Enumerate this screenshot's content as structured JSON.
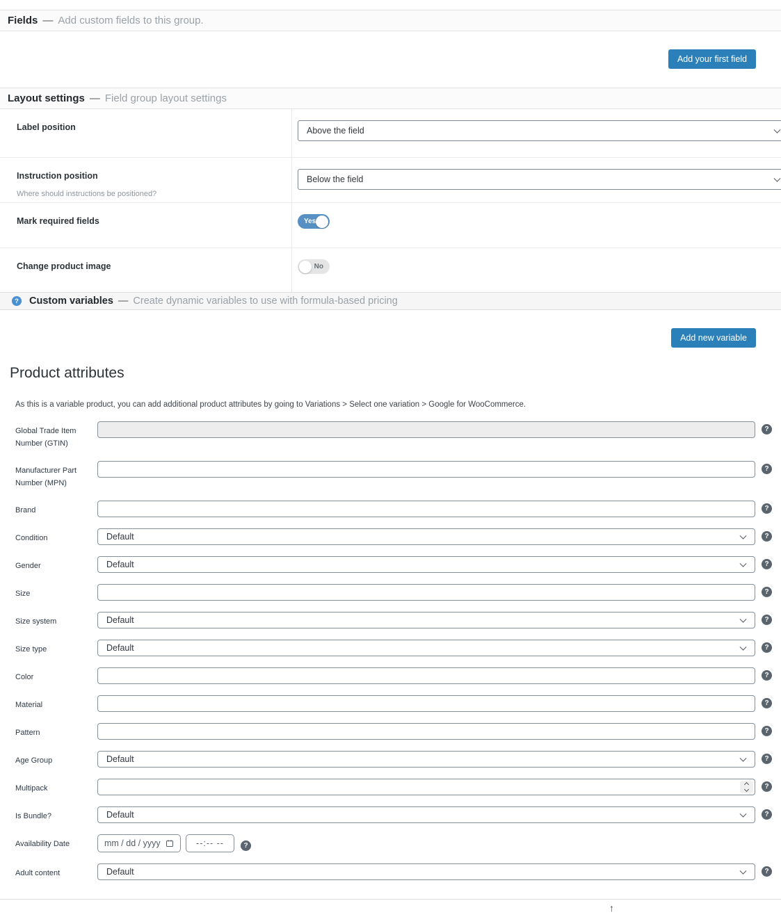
{
  "separator": "—",
  "colors": {
    "accent_blue": "#2c80ba",
    "toggle_on_blue": "#5791c4",
    "toggle_off_gray": "#e5e5e5",
    "help_icon_dark": "#59646e",
    "help_icon_blue": "#4a90d2"
  },
  "icons": {
    "help_glyph": "?",
    "arrow_up_glyph": "↑",
    "chevron_down": "css-chevron-shape",
    "calendar": "svg-calendar-shape",
    "number_stepper": "css-up-down-chevrons"
  },
  "sections": {
    "fields": {
      "title": "Fields",
      "subtitle": "Add custom fields to this group.",
      "button_label": "Add your first field"
    },
    "layout_settings": {
      "title": "Layout settings",
      "subtitle": "Field group layout settings",
      "rows": [
        {
          "label": "Label position",
          "control": "select",
          "value": "Above the field"
        },
        {
          "label": "Instruction position",
          "description": "Where should instructions be positioned?",
          "control": "select",
          "value": "Below the field"
        },
        {
          "label": "Mark required fields",
          "control": "toggle",
          "state": "on",
          "value": "Yes"
        },
        {
          "label": "Change product image",
          "control": "toggle",
          "state": "off",
          "value": "No"
        }
      ]
    },
    "custom_variables": {
      "title": "Custom variables",
      "subtitle": "Create dynamic variables to use with formula-based pricing",
      "button_label": "Add new variable"
    },
    "product_attributes": {
      "title": "Product attributes",
      "note": "As this is a variable product, you can add additional product attributes by going to Variations > Select one variation > Google for WooCommerce.",
      "rows": [
        {
          "label": "Global Trade Item Number (GTIN)",
          "control": "text",
          "value": "",
          "disabled": true
        },
        {
          "label": "Manufacturer Part Number (MPN)",
          "control": "text",
          "value": ""
        },
        {
          "label": "Brand",
          "control": "text",
          "value": ""
        },
        {
          "label": "Condition",
          "control": "select",
          "value": "Default"
        },
        {
          "label": "Gender",
          "control": "select",
          "value": "Default"
        },
        {
          "label": "Size",
          "control": "text",
          "value": ""
        },
        {
          "label": "Size system",
          "control": "select",
          "value": "Default"
        },
        {
          "label": "Size type",
          "control": "select",
          "value": "Default"
        },
        {
          "label": "Color",
          "control": "text",
          "value": ""
        },
        {
          "label": "Material",
          "control": "text",
          "value": ""
        },
        {
          "label": "Pattern",
          "control": "text",
          "value": ""
        },
        {
          "label": "Age Group",
          "control": "select",
          "value": "Default"
        },
        {
          "label": "Multipack",
          "control": "number",
          "value": ""
        },
        {
          "label": "Is Bundle?",
          "control": "select",
          "value": "Default"
        },
        {
          "label": "Availability Date",
          "control": "datetime",
          "date_placeholder": "mm / dd / yyyy",
          "time_placeholder": "--:--  --"
        },
        {
          "label": "Adult content",
          "control": "select",
          "value": "Default"
        }
      ]
    }
  }
}
